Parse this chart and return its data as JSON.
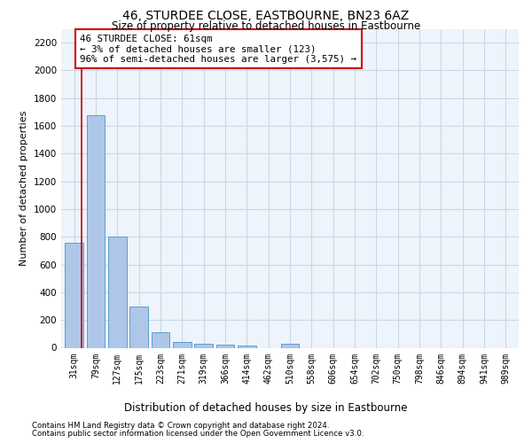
{
  "title": "46, STURDEE CLOSE, EASTBOURNE, BN23 6AZ",
  "subtitle": "Size of property relative to detached houses in Eastbourne",
  "xlabel": "Distribution of detached houses by size in Eastbourne",
  "ylabel": "Number of detached properties",
  "categories": [
    "31sqm",
    "79sqm",
    "127sqm",
    "175sqm",
    "223sqm",
    "271sqm",
    "319sqm",
    "366sqm",
    "414sqm",
    "462sqm",
    "510sqm",
    "558sqm",
    "606sqm",
    "654sqm",
    "702sqm",
    "750sqm",
    "798sqm",
    "846sqm",
    "894sqm",
    "941sqm",
    "989sqm"
  ],
  "values": [
    760,
    1680,
    800,
    300,
    115,
    40,
    27,
    22,
    15,
    0,
    30,
    0,
    0,
    0,
    0,
    0,
    0,
    0,
    0,
    0,
    0
  ],
  "bar_color": "#aec6e8",
  "bar_edge_color": "#5a9fd4",
  "annotation_box_text": "46 STURDEE CLOSE: 61sqm\n← 3% of detached houses are smaller (123)\n96% of semi-detached houses are larger (3,575) →",
  "annotation_box_color": "#cc0000",
  "red_line_x": 0.35,
  "ylim": [
    0,
    2300
  ],
  "yticks": [
    0,
    200,
    400,
    600,
    800,
    1000,
    1200,
    1400,
    1600,
    1800,
    2000,
    2200
  ],
  "footer1": "Contains HM Land Registry data © Crown copyright and database right 2024.",
  "footer2": "Contains public sector information licensed under the Open Government Licence v3.0.",
  "grid_color": "#c8d8e8",
  "bg_color": "#eef4fb"
}
